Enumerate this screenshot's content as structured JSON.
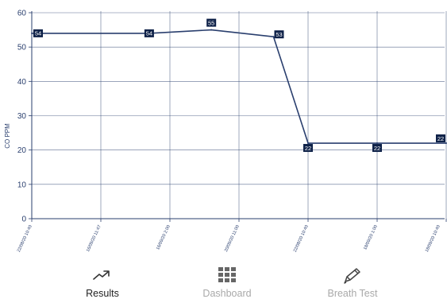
{
  "chart_data": {
    "type": "line",
    "ylabel": "CO PPM",
    "ylim": [
      0,
      60
    ],
    "yticks": [
      0,
      10,
      20,
      30,
      40,
      50,
      60
    ],
    "grid": true,
    "xticks": [
      "22/08/20 10:40",
      "16/09/20 11:47",
      "16/09/20 2:00",
      "20/09/20 11:00",
      "22/08/20 10:40",
      "18/09/20 1:00",
      "18/09/20 10:40"
    ],
    "series": [
      {
        "color": "#2a3f6e",
        "points": [
          {
            "x": 0.0,
            "y": 54,
            "label": "54"
          },
          {
            "x": 1.7,
            "y": 54,
            "label": "54"
          },
          {
            "x": 2.6,
            "y": 55,
            "label": "55"
          },
          {
            "x": 3.5,
            "y": 53,
            "label": "53"
          },
          {
            "x": 4.0,
            "y": 22,
            "label": "22"
          },
          {
            "x": 5.0,
            "y": 22,
            "label": "22"
          },
          {
            "x": 6.0,
            "y": 22,
            "label": "22"
          }
        ]
      }
    ]
  },
  "tabs": [
    {
      "label": "Results",
      "icon": "trending-line-icon",
      "active": true
    },
    {
      "label": "Dashboard",
      "icon": "grid-icon",
      "active": false
    },
    {
      "label": "Breath Test",
      "icon": "pencil-icon",
      "active": false
    }
  ],
  "colors": {
    "line": "#2a3f6e",
    "grid": "#2a3f6e",
    "label_bg": "#0e2148",
    "axis_text": "#2a3f6e",
    "tab_active": "#222222",
    "tab_inactive": "#a9a9a9"
  }
}
